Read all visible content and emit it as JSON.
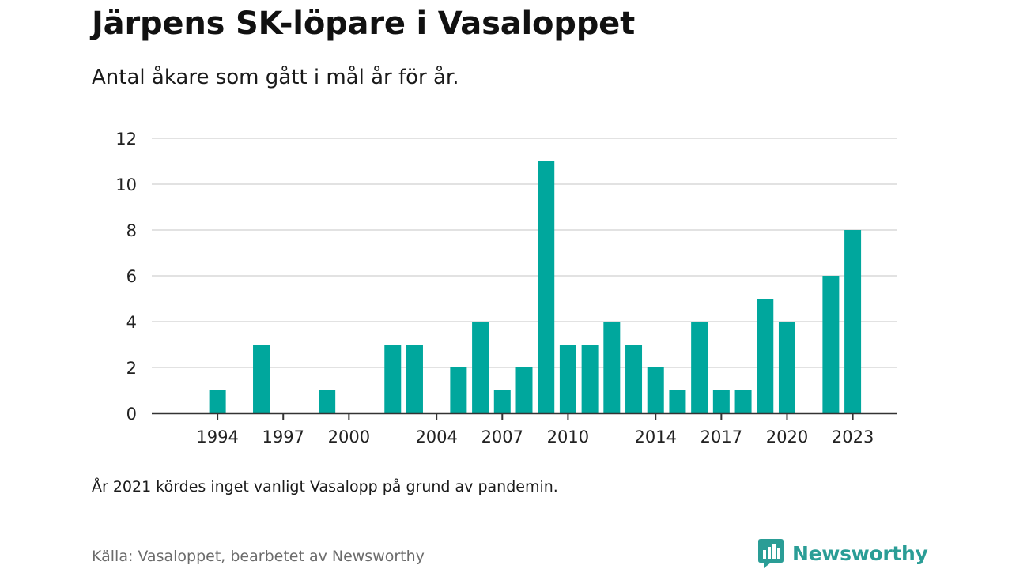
{
  "header": {
    "title": "Järpens SK-löpare i Vasaloppet",
    "subtitle": "Antal åkare som gått i mål år för år."
  },
  "footer": {
    "note": "År 2021 kördes inget vanligt Vasalopp på grund av pandemin.",
    "source": "Källa: Vasaloppet, bearbetet av Newsworthy",
    "brand": "Newsworthy"
  },
  "colors": {
    "bar": "#00a79d",
    "grid": "#d9d9d9",
    "axis": "#333333",
    "brand": "#2a9d96"
  },
  "chart_data": {
    "type": "bar",
    "title": "Järpens SK-löpare i Vasaloppet",
    "subtitle": "Antal åkare som gått i mål år för år.",
    "xlabel": "",
    "ylabel": "",
    "x_range": [
      1991,
      2025
    ],
    "ylim": [
      0,
      12
    ],
    "yticks": [
      0,
      2,
      4,
      6,
      8,
      10,
      12
    ],
    "xticks": [
      1994,
      1997,
      2000,
      2004,
      2007,
      2010,
      2014,
      2017,
      2020,
      2023
    ],
    "grid": "horizontal",
    "legend": "none",
    "points": [
      {
        "x": 1994,
        "y": 1
      },
      {
        "x": 1996,
        "y": 3
      },
      {
        "x": 1999,
        "y": 1
      },
      {
        "x": 2002,
        "y": 3
      },
      {
        "x": 2003,
        "y": 3
      },
      {
        "x": 2005,
        "y": 2
      },
      {
        "x": 2006,
        "y": 4
      },
      {
        "x": 2007,
        "y": 1
      },
      {
        "x": 2008,
        "y": 2
      },
      {
        "x": 2009,
        "y": 11
      },
      {
        "x": 2010,
        "y": 3
      },
      {
        "x": 2011,
        "y": 3
      },
      {
        "x": 2012,
        "y": 4
      },
      {
        "x": 2013,
        "y": 3
      },
      {
        "x": 2014,
        "y": 2
      },
      {
        "x": 2015,
        "y": 1
      },
      {
        "x": 2016,
        "y": 4
      },
      {
        "x": 2017,
        "y": 1
      },
      {
        "x": 2018,
        "y": 1
      },
      {
        "x": 2019,
        "y": 5
      },
      {
        "x": 2020,
        "y": 4
      },
      {
        "x": 2022,
        "y": 6
      },
      {
        "x": 2023,
        "y": 8
      }
    ]
  }
}
